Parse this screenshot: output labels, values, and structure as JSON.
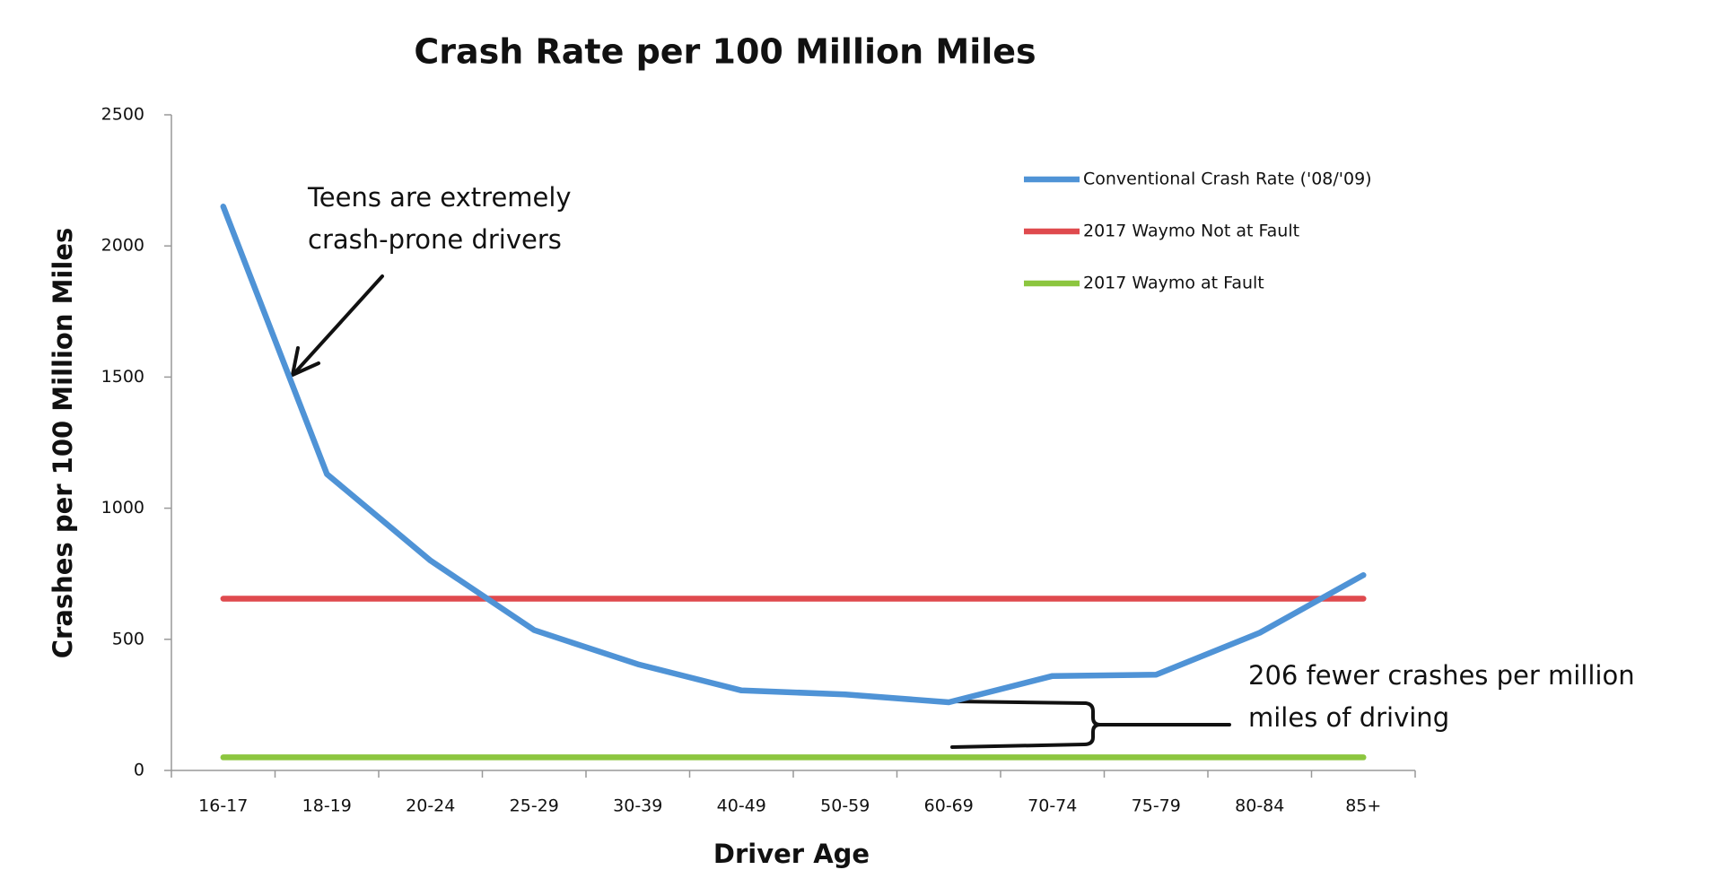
{
  "chart_data": {
    "type": "line",
    "title": "Crash Rate per 100 Million Miles",
    "x_label": "Driver Age",
    "y_label": "Crashes per 100 Million Miles",
    "categories": [
      "16-17",
      "18-19",
      "20-24",
      "25-29",
      "30-39",
      "40-49",
      "50-59",
      "60-69",
      "70-74",
      "75-79",
      "80-84",
      "85+"
    ],
    "series": [
      {
        "name": "Conventional Crash Rate ('08/'09)",
        "color": "#4f93d6",
        "values": [
          2150,
          1130,
          800,
          535,
          405,
          305,
          290,
          260,
          360,
          365,
          525,
          745
        ]
      },
      {
        "name": "2017 Waymo Not at Fault",
        "color": "#df4a4e",
        "values": [
          655,
          655,
          655,
          655,
          655,
          655,
          655,
          655,
          655,
          655,
          655,
          655
        ]
      },
      {
        "name": "2017 Waymo at Fault",
        "color": "#8cc63f",
        "values": [
          50,
          50,
          50,
          50,
          50,
          50,
          50,
          50,
          50,
          50,
          50,
          50
        ]
      }
    ],
    "ylim": [
      0,
      2500
    ],
    "yticks": [
      0,
      500,
      1000,
      1500,
      2000,
      2500
    ],
    "grid": false,
    "legend": "upper right",
    "annotations": [
      {
        "lines": [
          "Teens are extremely",
          "crash-prone drivers"
        ]
      },
      {
        "lines": [
          "206 fewer crashes per million",
          "miles of driving"
        ]
      }
    ]
  }
}
